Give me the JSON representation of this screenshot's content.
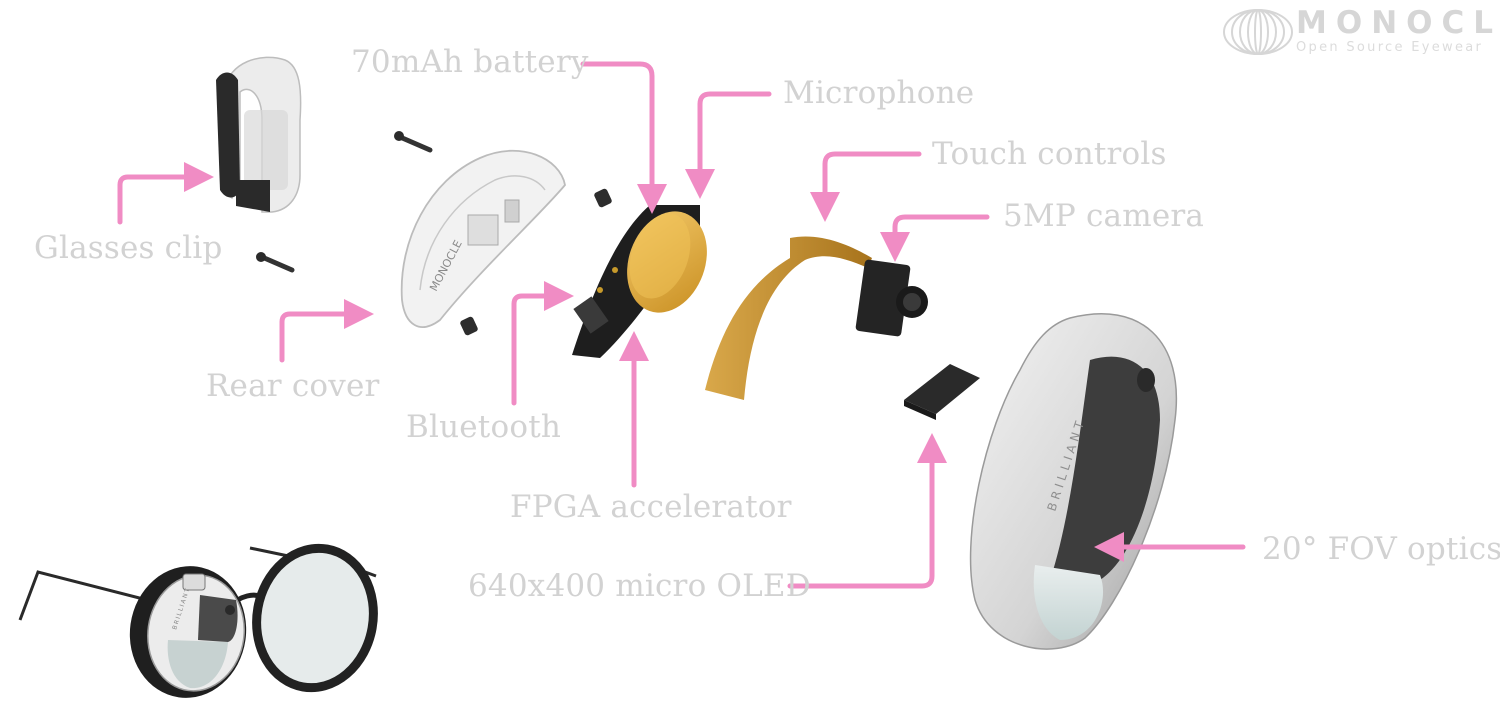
{
  "brand": {
    "name": "MONOCLE",
    "tagline": "Open Source Eyewear",
    "logo_icon": "monocle-rings-logo-icon"
  },
  "labels": {
    "battery": "70mAh battery",
    "microphone": "Microphone",
    "touch": "Touch controls",
    "camera": "5MP camera",
    "clip": "Glasses clip",
    "rear_cover": "Rear cover",
    "bluetooth": "Bluetooth",
    "fpga": "FPGA accelerator",
    "oled": "640x400 micro OLED",
    "optics": "20° FOV optics"
  },
  "engravings": {
    "housing": "BRILLIANT",
    "rear_cover": "MONOCLE",
    "small_housing": "BRILLIANT"
  },
  "colors": {
    "arrow": "#f08cc4",
    "label": "#d2d2d2",
    "flex_cable": "#c99a3a",
    "battery": "#e7b440",
    "pcb": "#1f1f1f",
    "housing_light": "#e6e6e6",
    "housing_dark": "#3b3b3b"
  }
}
